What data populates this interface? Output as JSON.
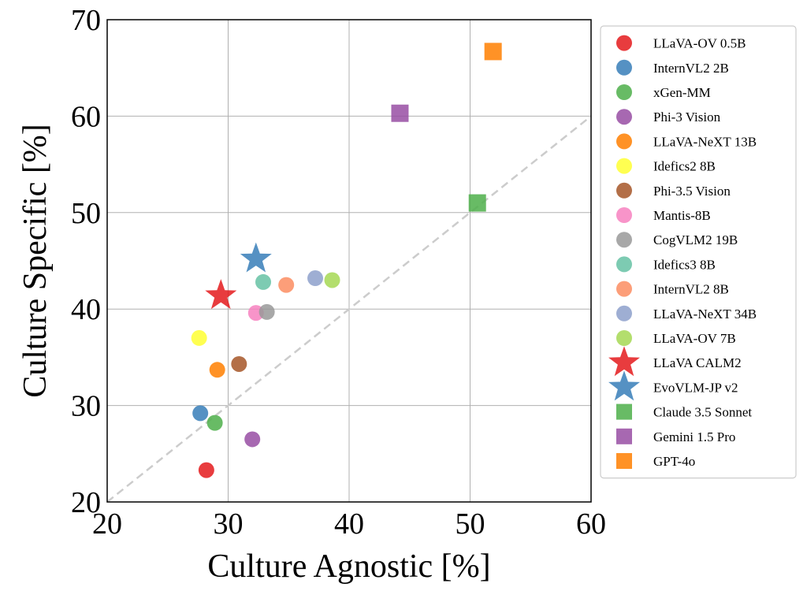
{
  "chart_data": {
    "type": "scatter",
    "title": "",
    "xlabel": "Culture Agnostic [%]",
    "ylabel": "Culture Specific [%]",
    "xlim": [
      20,
      60
    ],
    "ylim": [
      20,
      70
    ],
    "xticks": [
      "20",
      "30",
      "40",
      "50",
      "60"
    ],
    "yticks": [
      "20",
      "30",
      "40",
      "50",
      "60",
      "70"
    ],
    "grid": true,
    "legend_position": "right",
    "reference_line": {
      "style": "dashed",
      "color": "#cccccc",
      "from": [
        20,
        20
      ],
      "to": [
        60,
        60
      ]
    },
    "series": [
      {
        "name": "LLaVA-OV 0.5B",
        "marker": "circle",
        "color": "#e41a1c",
        "x": 28.2,
        "y": 23.3
      },
      {
        "name": "InternVL2 2B",
        "marker": "circle",
        "color": "#377eb8",
        "x": 27.7,
        "y": 29.2
      },
      {
        "name": "xGen-MM",
        "marker": "circle",
        "color": "#4daf4a",
        "x": 28.9,
        "y": 28.2
      },
      {
        "name": "Phi-3 Vision",
        "marker": "circle",
        "color": "#984ea3",
        "x": 32.0,
        "y": 26.5
      },
      {
        "name": "LLaVA-NeXT 13B",
        "marker": "circle",
        "color": "#ff7f00",
        "x": 29.1,
        "y": 33.7
      },
      {
        "name": "Idefics2 8B",
        "marker": "circle",
        "color": "#ffff33",
        "x": 27.6,
        "y": 37.0
      },
      {
        "name": "Phi-3.5 Vision",
        "marker": "circle",
        "color": "#a65628",
        "x": 30.9,
        "y": 34.3
      },
      {
        "name": "Mantis-8B",
        "marker": "circle",
        "color": "#f781bf",
        "x": 32.3,
        "y": 39.6
      },
      {
        "name": "CogVLM2 19B",
        "marker": "circle",
        "color": "#999999",
        "x": 33.2,
        "y": 39.7
      },
      {
        "name": "Idefics3 8B",
        "marker": "circle",
        "color": "#66c2a5",
        "x": 32.9,
        "y": 42.8
      },
      {
        "name": "InternVL2 8B",
        "marker": "circle",
        "color": "#fc8d62",
        "x": 34.8,
        "y": 42.5
      },
      {
        "name": "LLaVA-NeXT 34B",
        "marker": "circle",
        "color": "#8da0cb",
        "x": 37.2,
        "y": 43.2
      },
      {
        "name": "LLaVA-OV 7B",
        "marker": "circle",
        "color": "#a6d854",
        "x": 38.6,
        "y": 43.0
      },
      {
        "name": "LLaVA CALM2",
        "marker": "star",
        "color": "#e41a1c",
        "x": 29.4,
        "y": 41.4
      },
      {
        "name": "EvoVLM-JP v2",
        "marker": "star",
        "color": "#377eb8",
        "x": 32.3,
        "y": 45.2
      },
      {
        "name": "Claude 3.5 Sonnet",
        "marker": "square",
        "color": "#4daf4a",
        "x": 50.6,
        "y": 51.0
      },
      {
        "name": "Gemini 1.5 Pro",
        "marker": "square",
        "color": "#984ea3",
        "x": 44.2,
        "y": 60.3
      },
      {
        "name": "GPT-4o",
        "marker": "square",
        "color": "#ff7f00",
        "x": 51.9,
        "y": 66.7
      }
    ]
  }
}
